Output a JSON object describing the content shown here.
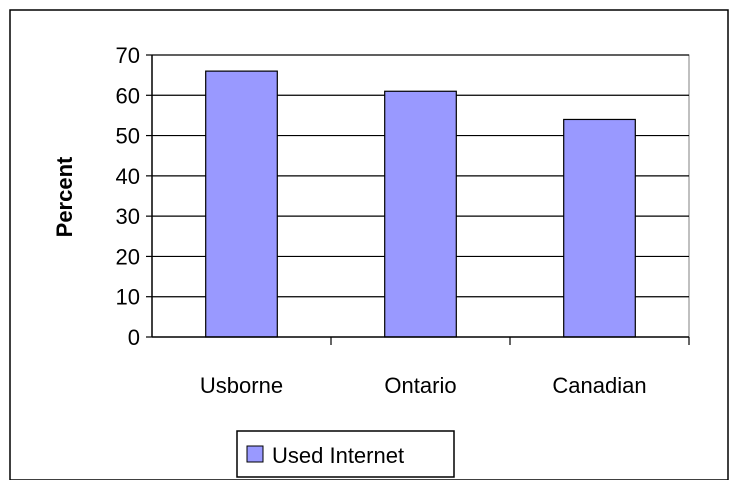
{
  "chart_data": {
    "type": "bar",
    "categories": [
      "Usborne",
      "Ontario",
      "Canadian"
    ],
    "series": [
      {
        "name": "Used Internet",
        "values": [
          66,
          61,
          54
        ]
      }
    ],
    "ylabel": "Percent",
    "xlabel": "",
    "ylim": [
      0,
      70
    ],
    "yticks": [
      0,
      10,
      20,
      30,
      40,
      50,
      60,
      70
    ],
    "grid": true,
    "legend": "bottom",
    "colors": {
      "bar_fill": "#9999FF",
      "bar_stroke": "#000000",
      "plot_bg": "#FFFFFF",
      "grid": "#000000"
    }
  }
}
